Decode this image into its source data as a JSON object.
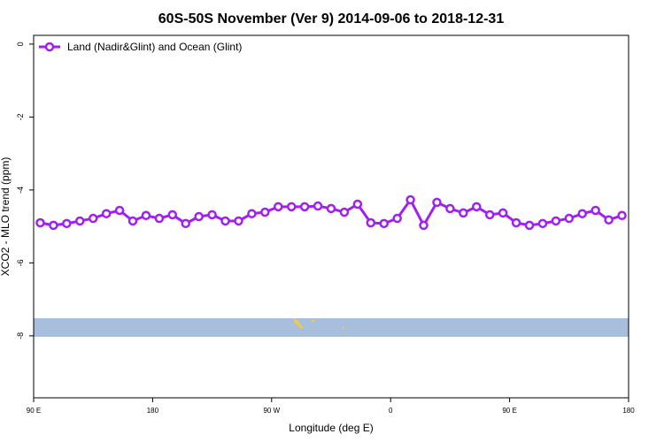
{
  "chart_data": {
    "type": "line",
    "title": "60S-50S November (Ver 9)   2014-09-06 to 2018-12-31",
    "x_label": "Longitude (deg E)",
    "y_label": "XCO2 - MLO trend (ppm)",
    "x": [
      95,
      105,
      115,
      125,
      135,
      145,
      155,
      165,
      175,
      185,
      195,
      205,
      215,
      225,
      235,
      245,
      255,
      265,
      275,
      285,
      295,
      305,
      315,
      325,
      335,
      345,
      355,
      365,
      375,
      385,
      395,
      405,
      415,
      425,
      435,
      445,
      455,
      465,
      475,
      485,
      495,
      505,
      515,
      525,
      535
    ],
    "series": [
      {
        "name": "Land (Nadir&Glint) and Ocean (Glint)",
        "color": "#a020f0",
        "values": [
          -4.9,
          -4.97,
          -4.92,
          -4.85,
          -4.78,
          -4.65,
          -4.56,
          -4.85,
          -4.7,
          -4.78,
          -4.68,
          -4.92,
          -4.73,
          -4.68,
          -4.85,
          -4.85,
          -4.65,
          -4.61,
          -4.46,
          -4.46,
          -4.46,
          -4.44,
          -4.51,
          -4.61,
          -4.39,
          -4.9,
          -4.92,
          -4.78,
          -4.27,
          -4.97,
          -4.34,
          -4.51,
          -4.63,
          -4.46,
          -4.68,
          -4.63,
          -4.9,
          -4.97,
          -4.92,
          -4.85,
          -4.78,
          -4.65,
          -4.56,
          -4.82,
          -4.7
        ]
      }
    ],
    "xlim": [
      90,
      540
    ],
    "xticks": [
      {
        "value": 90,
        "label": "90 E"
      },
      180,
      {
        "value": 270,
        "label": "90 W"
      },
      {
        "value": 360,
        "label": "0"
      },
      {
        "value": 450,
        "label": "90 E"
      },
      {
        "value": 540,
        "label": "180"
      }
    ],
    "ylim": [
      -9.7,
      0.24
    ],
    "yticks": [
      0,
      -2,
      -4,
      -6,
      -8
    ],
    "legend": "top-left"
  }
}
